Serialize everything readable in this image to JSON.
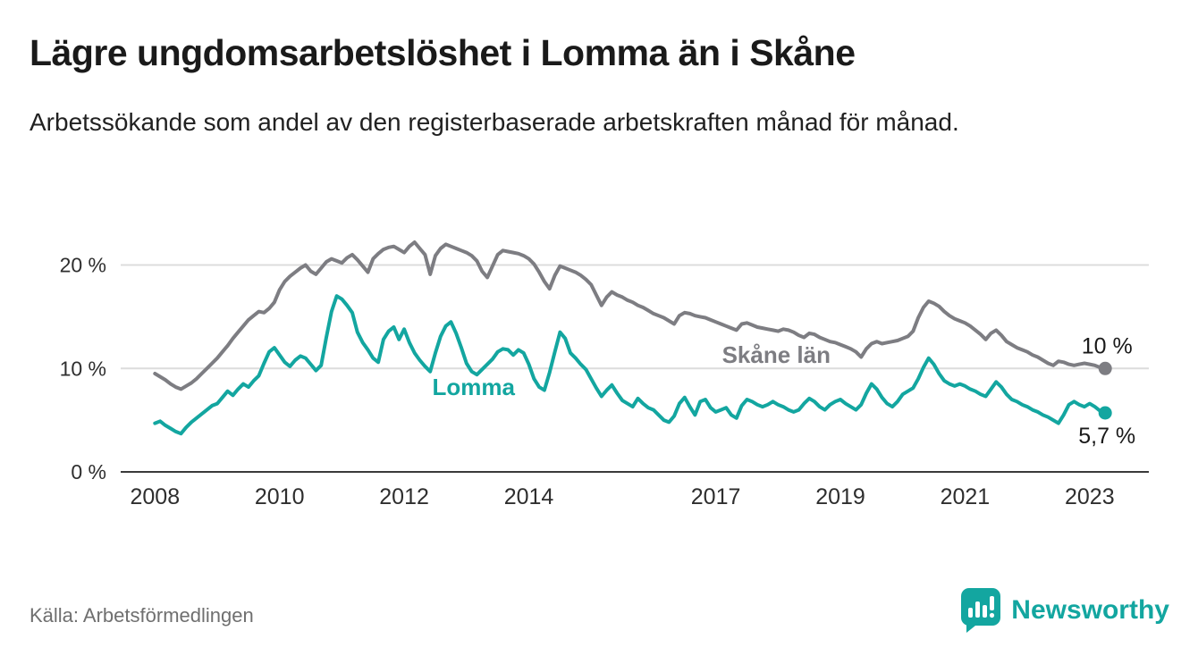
{
  "header": {
    "title": "Lägre ungdomsarbetslöshet i Lomma än i Skåne",
    "subtitle": "Arbetssökande som andel av den registerbaserade arbetskraften månad för månad."
  },
  "footer": {
    "source": "Källa: Arbetsförmedlingen",
    "brand": "Newsworthy"
  },
  "colors": {
    "lomma": "#13a6a0",
    "skane": "#7d7d82",
    "grid": "#dcdcdc",
    "axis": "#3a3a3a",
    "text": "#1a1a1a",
    "muted": "#6f6f6f"
  },
  "chart_data": {
    "type": "line",
    "title": "Lägre ungdomsarbetslöshet i Lomma än i Skåne",
    "subtitle": "Arbetssökande som andel av den registerbaserade arbetskraften månad för månad.",
    "xlabel": "",
    "ylabel": "",
    "unit": "%",
    "grid": true,
    "legend_position": "inline-labels",
    "x_start": 2008.0,
    "x_step_months": 1,
    "x_range": [
      2007.45,
      2023.95
    ],
    "y_range": [
      0,
      23.5
    ],
    "x_ticks": [
      {
        "value": 2008,
        "label": "2008"
      },
      {
        "value": 2010,
        "label": "2010"
      },
      {
        "value": 2012,
        "label": "2012"
      },
      {
        "value": 2014,
        "label": "2014"
      },
      {
        "value": 2017,
        "label": "2017"
      },
      {
        "value": 2019,
        "label": "2019"
      },
      {
        "value": 2021,
        "label": "2021"
      },
      {
        "value": 2023,
        "label": "2023"
      }
    ],
    "y_ticks": [
      {
        "value": 0,
        "label": "0 %"
      },
      {
        "value": 10,
        "label": "10 %"
      },
      {
        "value": 20,
        "label": "20 %"
      }
    ],
    "series": [
      {
        "name": "Skåne län",
        "color_key": "skane",
        "values": [
          9.5,
          9.2,
          8.9,
          8.5,
          8.2,
          8.0,
          8.3,
          8.6,
          9.0,
          9.5,
          10.0,
          10.5,
          11.0,
          11.6,
          12.2,
          12.9,
          13.5,
          14.1,
          14.7,
          15.1,
          15.5,
          15.4,
          15.8,
          16.4,
          17.6,
          18.4,
          18.9,
          19.3,
          19.7,
          20.0,
          19.4,
          19.1,
          19.7,
          20.3,
          20.6,
          20.4,
          20.2,
          20.7,
          21.0,
          20.5,
          19.9,
          19.3,
          20.6,
          21.1,
          21.5,
          21.7,
          21.8,
          21.5,
          21.2,
          21.8,
          22.2,
          21.6,
          21.0,
          19.1,
          20.9,
          21.6,
          22.0,
          21.8,
          21.6,
          21.4,
          21.2,
          20.9,
          20.4,
          19.4,
          18.8,
          19.9,
          21.0,
          21.4,
          21.3,
          21.2,
          21.1,
          20.9,
          20.6,
          20.1,
          19.3,
          18.4,
          17.7,
          19.0,
          19.9,
          19.7,
          19.5,
          19.3,
          19.0,
          18.6,
          18.1,
          17.1,
          16.1,
          16.9,
          17.4,
          17.1,
          16.9,
          16.6,
          16.4,
          16.1,
          15.9,
          15.6,
          15.3,
          15.1,
          14.9,
          14.6,
          14.3,
          15.1,
          15.4,
          15.3,
          15.1,
          15.0,
          14.9,
          14.7,
          14.5,
          14.3,
          14.1,
          13.9,
          13.7,
          14.3,
          14.4,
          14.2,
          14.0,
          13.9,
          13.8,
          13.7,
          13.6,
          13.8,
          13.7,
          13.5,
          13.2,
          13.0,
          13.4,
          13.3,
          13.0,
          12.8,
          12.6,
          12.5,
          12.3,
          12.1,
          11.9,
          11.6,
          11.1,
          11.9,
          12.4,
          12.6,
          12.4,
          12.5,
          12.6,
          12.7,
          12.9,
          13.1,
          13.6,
          14.9,
          15.9,
          16.5,
          16.3,
          16.0,
          15.5,
          15.1,
          14.8,
          14.6,
          14.4,
          14.1,
          13.7,
          13.3,
          12.8,
          13.4,
          13.7,
          13.2,
          12.6,
          12.3,
          12.0,
          11.8,
          11.6,
          11.3,
          11.1,
          10.8,
          10.5,
          10.3,
          10.7,
          10.6,
          10.4,
          10.3,
          10.4,
          10.5,
          10.4,
          10.3,
          10.1,
          10.0
        ]
      },
      {
        "name": "Lomma",
        "color_key": "lomma",
        "values": [
          4.7,
          4.9,
          4.5,
          4.2,
          3.9,
          3.7,
          4.3,
          4.8,
          5.2,
          5.6,
          6.0,
          6.4,
          6.6,
          7.2,
          7.8,
          7.4,
          8.0,
          8.5,
          8.2,
          8.8,
          9.3,
          10.5,
          11.6,
          12.0,
          11.3,
          10.6,
          10.2,
          10.8,
          11.2,
          11.0,
          10.4,
          9.8,
          10.3,
          13.0,
          15.5,
          17.0,
          16.7,
          16.1,
          15.4,
          13.5,
          12.5,
          11.8,
          11.0,
          10.6,
          12.8,
          13.6,
          14.0,
          12.8,
          13.8,
          12.5,
          11.5,
          10.8,
          10.2,
          9.7,
          11.5,
          13.1,
          14.1,
          14.5,
          13.4,
          12.0,
          10.5,
          9.7,
          9.4,
          9.9,
          10.4,
          10.9,
          11.6,
          11.9,
          11.8,
          11.3,
          11.8,
          11.5,
          10.4,
          9.0,
          8.2,
          7.9,
          9.6,
          11.6,
          13.5,
          12.9,
          11.5,
          11.0,
          10.4,
          9.9,
          9.0,
          8.1,
          7.3,
          7.9,
          8.4,
          7.6,
          6.9,
          6.6,
          6.3,
          7.1,
          6.6,
          6.2,
          6.0,
          5.5,
          5.0,
          4.8,
          5.4,
          6.6,
          7.2,
          6.3,
          5.5,
          6.8,
          7.0,
          6.2,
          5.8,
          6.0,
          6.2,
          5.5,
          5.2,
          6.4,
          7.0,
          6.8,
          6.5,
          6.3,
          6.5,
          6.8,
          6.5,
          6.3,
          6.0,
          5.8,
          6.0,
          6.6,
          7.1,
          6.8,
          6.3,
          6.0,
          6.5,
          6.8,
          7.0,
          6.6,
          6.3,
          6.0,
          6.5,
          7.6,
          8.5,
          8.0,
          7.2,
          6.6,
          6.3,
          6.8,
          7.5,
          7.8,
          8.1,
          9.0,
          10.1,
          11.0,
          10.4,
          9.5,
          8.8,
          8.5,
          8.3,
          8.5,
          8.3,
          8.0,
          7.8,
          7.5,
          7.3,
          8.0,
          8.7,
          8.2,
          7.5,
          7.0,
          6.8,
          6.5,
          6.3,
          6.0,
          5.8,
          5.5,
          5.3,
          5.0,
          4.7,
          5.5,
          6.5,
          6.8,
          6.5,
          6.3,
          6.6,
          6.3,
          5.9,
          5.7
        ]
      }
    ],
    "end_labels": [
      {
        "series_index": 0,
        "text": "10 %",
        "position": "above"
      },
      {
        "series_index": 1,
        "text": "5,7 %",
        "position": "below"
      }
    ],
    "annotations": [
      {
        "text": "Skåne län",
        "x": 2017.1,
        "y": 11.3,
        "color_key": "skane"
      },
      {
        "text": "Lomma",
        "x": 2012.45,
        "y": 8.2,
        "color_key": "lomma"
      }
    ]
  }
}
